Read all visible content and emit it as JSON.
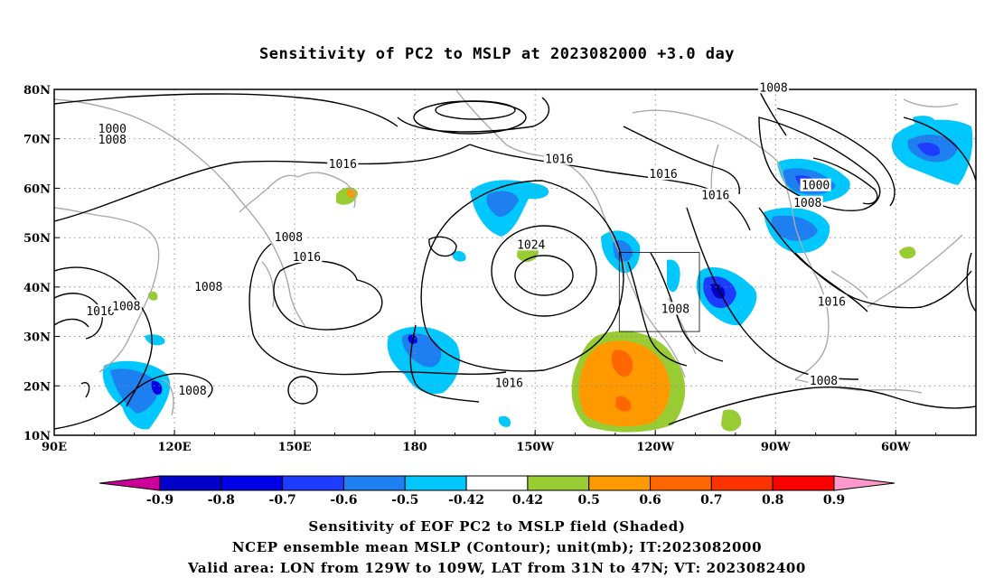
{
  "title": "Sensitivity of PC2 to MSLP at 2023082000 +3.0 day",
  "map": {
    "lon_labels": [
      "90E",
      "120E",
      "150E",
      "180",
      "150W",
      "120W",
      "90W",
      "60W"
    ],
    "lat_labels": [
      "80N",
      "70N",
      "60N",
      "50N",
      "40N",
      "30N",
      "20N",
      "10N"
    ],
    "lon_range": [
      90,
      320
    ],
    "lat_range": [
      10,
      80
    ],
    "grid": "dotted",
    "valid_area": {
      "lon": [
        231,
        251
      ],
      "lat": [
        31,
        47
      ]
    }
  },
  "contours": {
    "labels": [
      {
        "text": "1000",
        "lon": 104.5,
        "lat": 72.0
      },
      {
        "text": "1008",
        "lon": 104.5,
        "lat": 69.8
      },
      {
        "text": "1016",
        "lon": 162.0,
        "lat": 64.8
      },
      {
        "text": "1016",
        "lon": 216.0,
        "lat": 65.8
      },
      {
        "text": "1016",
        "lon": 242.0,
        "lat": 62.8
      },
      {
        "text": "1016",
        "lon": 255.0,
        "lat": 58.5
      },
      {
        "text": "1008",
        "lon": 269.5,
        "lat": 80.3
      },
      {
        "text": "1000",
        "lon": 280.0,
        "lat": 60.5
      },
      {
        "text": "1008",
        "lon": 278.0,
        "lat": 57.0
      },
      {
        "text": "1008",
        "lon": 148.5,
        "lat": 50.0
      },
      {
        "text": "1016",
        "lon": 153.0,
        "lat": 46.0
      },
      {
        "text": "1024",
        "lon": 209.0,
        "lat": 48.5
      },
      {
        "text": "1008",
        "lon": 128.5,
        "lat": 40.0
      },
      {
        "text": "1016",
        "lon": 101.5,
        "lat": 35.0
      },
      {
        "text": "1008",
        "lon": 108.0,
        "lat": 36.0
      },
      {
        "text": "1008",
        "lon": 245.0,
        "lat": 35.5
      },
      {
        "text": "1016",
        "lon": 284.0,
        "lat": 37.0
      },
      {
        "text": "1016",
        "lon": 203.5,
        "lat": 20.5
      },
      {
        "text": "1008",
        "lon": 124.5,
        "lat": 19.0
      },
      {
        "text": "1008",
        "lon": 282.0,
        "lat": 21.0
      }
    ]
  },
  "colorbar": {
    "labels": [
      "-0.9",
      "-0.8",
      "-0.7",
      "-0.6",
      "-0.5",
      "-0.42",
      "0.42",
      "0.5",
      "0.6",
      "0.7",
      "0.8",
      "0.9"
    ],
    "colors": [
      "#cc0099",
      "#0000c8",
      "#0000e6",
      "#1e3cff",
      "#1e7ff0",
      "#00c8ff",
      "#ffffff",
      "#99cc33",
      "#ff9900",
      "#ff6600",
      "#ff3300",
      "#ff0000",
      "#ff99cc"
    ]
  },
  "caption": {
    "line1": "Sensitivity of EOF PC2 to MSLP field (Shaded)",
    "line2": "NCEP ensemble mean MSLP (Contour); unit(mb); IT:2023082000",
    "line3": "Valid area: LON from 129W to 109W, LAT from 31N to 47N; VT: 2023082400"
  }
}
